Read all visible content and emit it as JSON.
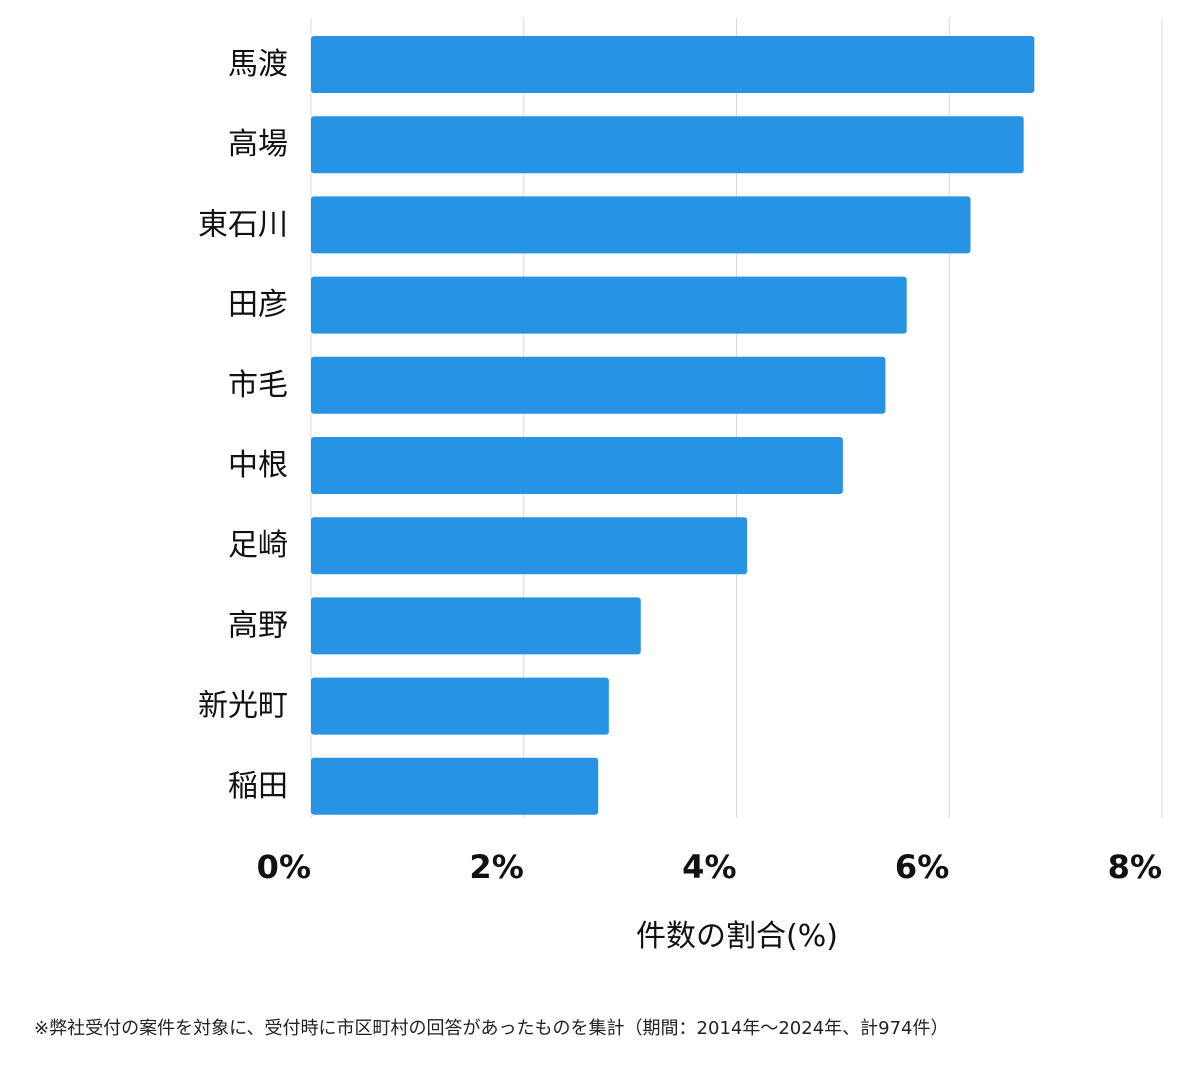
{
  "chart_data": {
    "type": "bar",
    "orientation": "horizontal",
    "categories": [
      "馬渡",
      "高場",
      "東石川",
      "田彦",
      "市毛",
      "中根",
      "足崎",
      "高野",
      "新光町",
      "稲田"
    ],
    "values": [
      6.8,
      6.7,
      6.2,
      5.6,
      5.4,
      5.0,
      4.1,
      3.1,
      2.8,
      2.7
    ],
    "xlabel": "件数の割合(%)",
    "ylabel": "",
    "xlim": [
      0,
      8
    ],
    "ticks": [
      0,
      2,
      4,
      6,
      8
    ],
    "tick_labels": [
      "0%",
      "2%",
      "4%",
      "6%",
      "8%"
    ],
    "grid": true,
    "bar_color": "#2793e5",
    "grid_color": "#d9d9d9"
  },
  "footnote": "※弊社受付の案件を対象に、受付時に市区町村の回答があったものを集計（期間：2014年～2024年、計974件）"
}
